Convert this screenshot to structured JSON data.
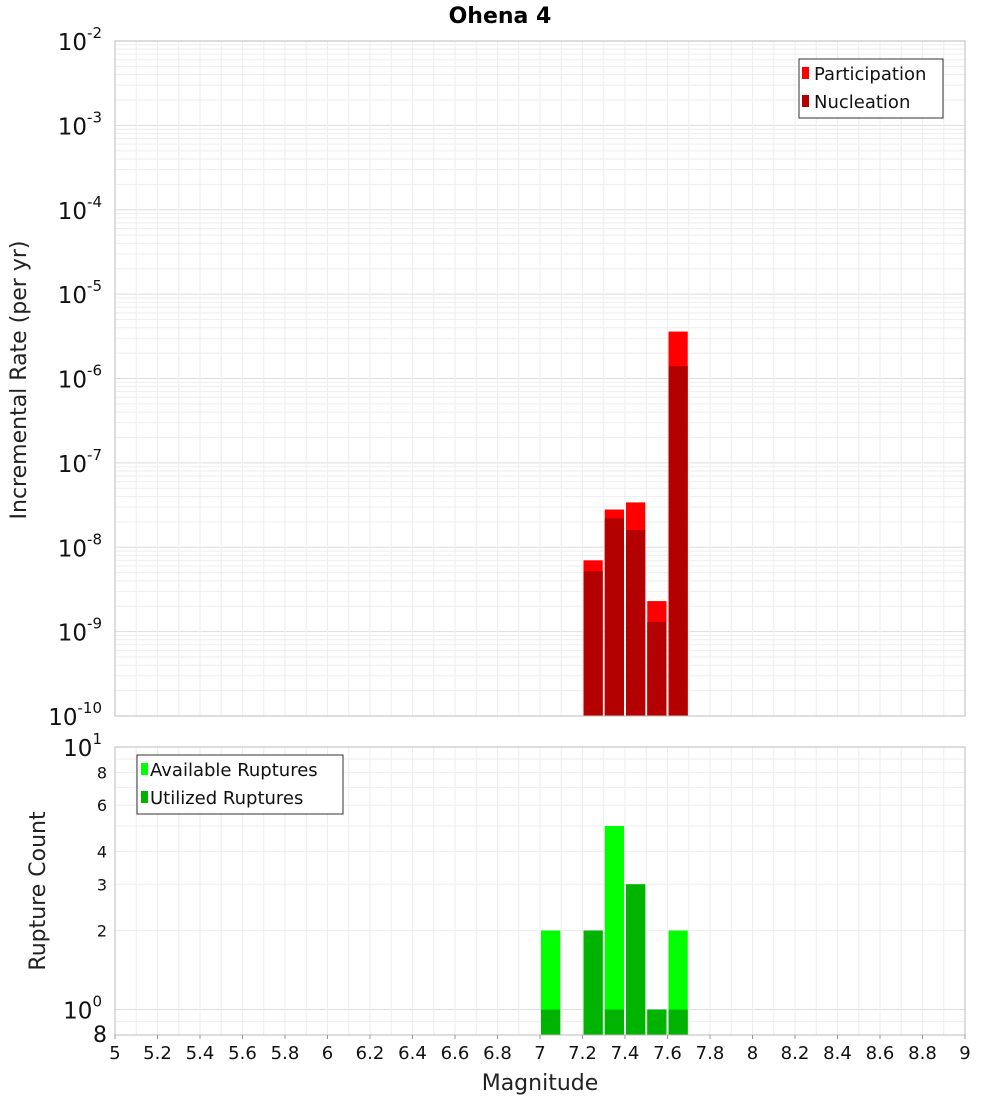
{
  "chart_data": [
    {
      "type": "bar",
      "title": "Ohena 4",
      "xlabel": "",
      "ylabel": "Incremental Rate (per yr)",
      "y_scale": "log",
      "ylim": [
        1e-10,
        0.01
      ],
      "xlim": [
        5,
        9
      ],
      "bar_width": 0.1,
      "grid": true,
      "legend_position": "top-right",
      "y_ticks": [
        {
          "base": "10",
          "exp": "-10"
        },
        {
          "base": "10",
          "exp": "-9"
        },
        {
          "base": "10",
          "exp": "-8"
        },
        {
          "base": "10",
          "exp": "-7"
        },
        {
          "base": "10",
          "exp": "-6"
        },
        {
          "base": "10",
          "exp": "-5"
        },
        {
          "base": "10",
          "exp": "-4"
        },
        {
          "base": "10",
          "exp": "-3"
        },
        {
          "base": "10",
          "exp": "-2"
        }
      ],
      "series": [
        {
          "name": "Participation",
          "color": "#ff0000",
          "x": [
            7.25,
            7.35,
            7.45,
            7.55,
            7.65
          ],
          "values": [
            7e-09,
            2.8e-08,
            3.4e-08,
            2.3e-09,
            3.6e-06
          ]
        },
        {
          "name": "Nucleation",
          "color": "#b30000",
          "x": [
            7.25,
            7.35,
            7.45,
            7.55,
            7.65
          ],
          "values": [
            5.2e-09,
            2.2e-08,
            1.6e-08,
            1.3e-09,
            1.4e-06
          ]
        }
      ]
    },
    {
      "type": "bar",
      "title": "",
      "xlabel": "Magnitude",
      "ylabel": "Rupture Count",
      "y_scale": "log",
      "ylim": [
        0.8,
        10
      ],
      "xlim": [
        5,
        9
      ],
      "bar_width": 0.1,
      "grid": true,
      "legend_position": "top-left",
      "x_tick_labels": [
        "5",
        "5.2",
        "5.4",
        "5.6",
        "5.8",
        "6",
        "6.2",
        "6.4",
        "6.6",
        "6.8",
        "7",
        "7.2",
        "7.4",
        "7.6",
        "7.8",
        "8",
        "8.2",
        "8.4",
        "8.6",
        "8.8",
        "9"
      ],
      "y_major_ticks": [
        {
          "value": 1,
          "base": "10",
          "exp": "0"
        },
        {
          "value": 10,
          "base": "10",
          "exp": "1"
        }
      ],
      "y_minor_ticks": [
        {
          "value": 0.8,
          "label": "8"
        },
        {
          "value": 2,
          "label": "2"
        },
        {
          "value": 3,
          "label": "3"
        },
        {
          "value": 4,
          "label": "4"
        },
        {
          "value": 6,
          "label": "6"
        },
        {
          "value": 8,
          "label": "8"
        }
      ],
      "series": [
        {
          "name": "Available Ruptures",
          "color": "#00ff00",
          "x": [
            7.05,
            7.25,
            7.35,
            7.45,
            7.55,
            7.65
          ],
          "values": [
            2,
            2,
            5,
            3,
            1,
            2
          ]
        },
        {
          "name": "Utilized Ruptures",
          "color": "#00b300",
          "x": [
            7.05,
            7.25,
            7.35,
            7.45,
            7.55,
            7.65
          ],
          "values": [
            1,
            2,
            1,
            3,
            1,
            1
          ]
        }
      ]
    }
  ]
}
